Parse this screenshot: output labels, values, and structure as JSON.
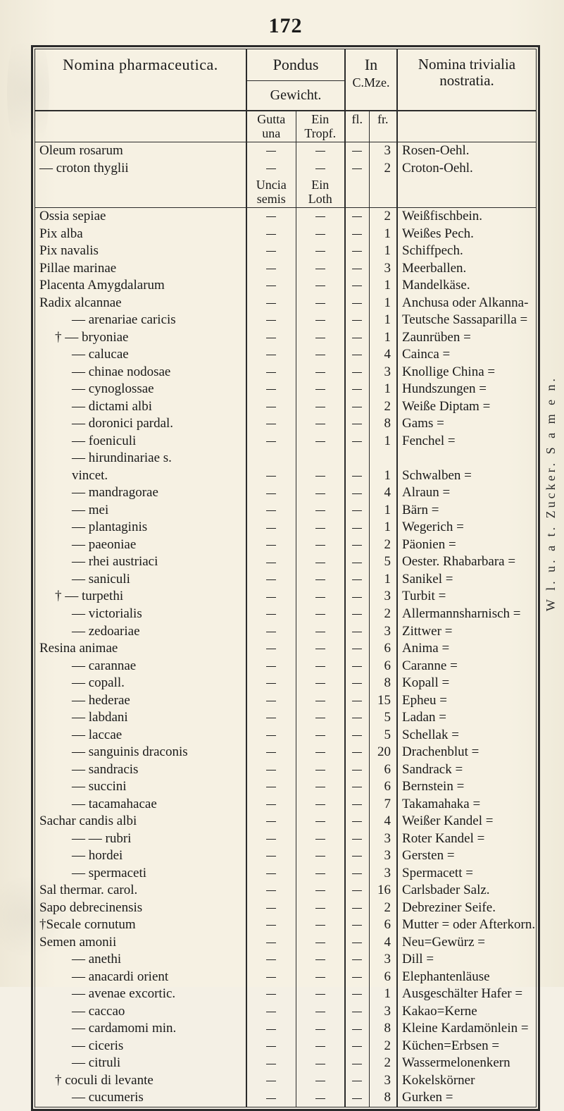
{
  "page_number": "172",
  "columns": {
    "nomina": "Nomina pharmaceutica.",
    "pondus": "Pondus",
    "gewicht": "Gewicht.",
    "in": "In",
    "cmze": "C.Mze.",
    "trivialia": "Nomina trivialia nostratia."
  },
  "group2": {
    "gutta_una": "Gutta\nuna",
    "ein_tropf": "Ein\nTropf.",
    "fl": "fl.",
    "fr": "fr.",
    "uncia_semis": "Uncia\nsemis",
    "ein_loth": "Ein\nLoth"
  },
  "blocks": [
    {
      "rows": [
        {
          "n": "Oleum rosarum",
          "a": "—",
          "b": "—",
          "fl": "—",
          "fr": "3",
          "t": "Rosen-Oehl."
        },
        {
          "n": "— croton thyglii",
          "a": "—",
          "b": "—",
          "fl": "—",
          "fr": "2",
          "t": "Croton-Oehl."
        }
      ]
    },
    {
      "rows": [
        {
          "n": "Ossia sepiae",
          "a": "—",
          "b": "—",
          "fl": "—",
          "fr": "2",
          "t": "Weißfischbein."
        },
        {
          "n": "Pix alba",
          "a": "—",
          "b": "—",
          "fl": "—",
          "fr": "1",
          "t": "Weißes Pech."
        },
        {
          "n": "Pix navalis",
          "a": "—",
          "b": "—",
          "fl": "—",
          "fr": "1",
          "t": "Schiffpech."
        },
        {
          "n": "Pillae marinae",
          "a": "—",
          "b": "—",
          "fl": "—",
          "fr": "3",
          "t": "Meerballen."
        },
        {
          "n": "Placenta Amygdalarum",
          "a": "—",
          "b": "—",
          "fl": "—",
          "fr": "1",
          "t": "Mandelkäse."
        },
        {
          "n": "Radix alcannae",
          "a": "—",
          "b": "—",
          "fl": "—",
          "fr": "1",
          "t": "Anchusa oder Alkanna-"
        },
        {
          "n": "—  arenariae caricis",
          "i": 2,
          "a": "—",
          "b": "—",
          "fl": "—",
          "fr": "1",
          "t": "Teutsche Sassaparilla ="
        },
        {
          "n": "† —  bryoniae",
          "i": 1,
          "a": "—",
          "b": "—",
          "fl": "—",
          "fr": "1",
          "t": "Zaunrüben ="
        },
        {
          "n": "—  calucae",
          "i": 2,
          "a": "—",
          "b": "—",
          "fl": "—",
          "fr": "4",
          "t": "Cainca ="
        },
        {
          "n": "—  chinae nodosae",
          "i": 2,
          "a": "—",
          "b": "—",
          "fl": "—",
          "fr": "3",
          "t": "Knollige China ="
        },
        {
          "n": "—  cynoglossae",
          "i": 2,
          "a": "—",
          "b": "—",
          "fl": "—",
          "fr": "1",
          "t": "Hundszungen ="
        },
        {
          "n": "—  dictami albi",
          "i": 2,
          "a": "—",
          "b": "—",
          "fl": "—",
          "fr": "2",
          "t": "Weiße Diptam ="
        },
        {
          "n": "—  doronici pardal.",
          "i": 2,
          "a": "—",
          "b": "—",
          "fl": "—",
          "fr": "8",
          "t": "Gams ="
        },
        {
          "n": "—  foeniculi",
          "i": 2,
          "a": "—",
          "b": "—",
          "fl": "—",
          "fr": "1",
          "t": "Fenchel ="
        },
        {
          "n": "—  hirundinariae  s.",
          "i": 2,
          "a": "",
          "b": "",
          "fl": "",
          "fr": "",
          "t": ""
        },
        {
          "n": "        vincet.",
          "i": 2,
          "a": "—",
          "b": "—",
          "fl": "—",
          "fr": "1",
          "t": "Schwalben ="
        },
        {
          "n": "—  mandragorae",
          "i": 2,
          "a": "—",
          "b": "—",
          "fl": "—",
          "fr": "4",
          "t": "Alraun ="
        },
        {
          "n": "—  mei",
          "i": 2,
          "a": "—",
          "b": "—",
          "fl": "—",
          "fr": "1",
          "t": "Bärn ="
        },
        {
          "n": "—  plantaginis",
          "i": 2,
          "a": "—",
          "b": "—",
          "fl": "—",
          "fr": "1",
          "t": "Wegerich ="
        },
        {
          "n": "—  paeoniae",
          "i": 2,
          "a": "—",
          "b": "—",
          "fl": "—",
          "fr": "2",
          "t": "Päonien ="
        },
        {
          "n": "—  rhei austriaci",
          "i": 2,
          "a": "—",
          "b": "—",
          "fl": "—",
          "fr": "5",
          "t": "Oester. Rhabarbara ="
        },
        {
          "n": "—  saniculi",
          "i": 2,
          "a": "—",
          "b": "—",
          "fl": "—",
          "fr": "1",
          "t": "Sanikel ="
        },
        {
          "n": "† —  turpethi",
          "i": 1,
          "a": "—",
          "b": "—",
          "fl": "—",
          "fr": "3",
          "t": "Turbit ="
        },
        {
          "n": "—  victorialis",
          "i": 2,
          "a": "—",
          "b": "—",
          "fl": "—",
          "fr": "2",
          "t": "Allermannsharnisch ="
        },
        {
          "n": "—  zedoariae",
          "i": 2,
          "a": "—",
          "b": "—",
          "fl": "—",
          "fr": "3",
          "t": "Zittwer ="
        },
        {
          "n": "Resina animae",
          "a": "—",
          "b": "—",
          "fl": "—",
          "fr": "6",
          "t": "Anima ="
        },
        {
          "n": "—  carannae",
          "i": 2,
          "a": "—",
          "b": "—",
          "fl": "—",
          "fr": "6",
          "t": "Caranne ="
        },
        {
          "n": "—  copall.",
          "i": 2,
          "a": "—",
          "b": "—",
          "fl": "—",
          "fr": "8",
          "t": "Kopall ="
        },
        {
          "n": "—  hederae",
          "i": 2,
          "a": "—",
          "b": "—",
          "fl": "—",
          "fr": "15",
          "t": "Epheu ="
        },
        {
          "n": "—  labdani",
          "i": 2,
          "a": "—",
          "b": "—",
          "fl": "—",
          "fr": "5",
          "t": "Ladan ="
        },
        {
          "n": "—  laccae",
          "i": 2,
          "a": "—",
          "b": "—",
          "fl": "—",
          "fr": "5",
          "t": "Schellak ="
        },
        {
          "n": "—  sanguinis draconis",
          "i": 2,
          "a": "—",
          "b": "—",
          "fl": "—",
          "fr": "20",
          "t": "Drachenblut ="
        },
        {
          "n": "—  sandracis",
          "i": 2,
          "a": "—",
          "b": "—",
          "fl": "—",
          "fr": "6",
          "t": "Sandrack ="
        },
        {
          "n": "—  succini",
          "i": 2,
          "a": "—",
          "b": "—",
          "fl": "—",
          "fr": "6",
          "t": "Bernstein ="
        },
        {
          "n": "—  tacamahacae",
          "i": 2,
          "a": "—",
          "b": "—",
          "fl": "—",
          "fr": "7",
          "t": "Takamahaka ="
        },
        {
          "n": "Sachar candis albi",
          "a": "—",
          "b": "—",
          "fl": "—",
          "fr": "4",
          "t": "Weißer Kandel ="
        },
        {
          "n": "—   —   rubri",
          "i": 2,
          "a": "—",
          "b": "—",
          "fl": "—",
          "fr": "3",
          "t": "Roter Kandel ="
        },
        {
          "n": "—  hordei",
          "i": 2,
          "a": "—",
          "b": "—",
          "fl": "—",
          "fr": "3",
          "t": "Gersten ="
        },
        {
          "n": "—  spermaceti",
          "i": 2,
          "a": "—",
          "b": "—",
          "fl": "—",
          "fr": "3",
          "t": "Spermacett ="
        },
        {
          "n": "Sal thermar. carol.",
          "a": "—",
          "b": "—",
          "fl": "—",
          "fr": "16",
          "t": "Carlsbader Salz."
        },
        {
          "n": "Sapo debrecinensis",
          "a": "—",
          "b": "—",
          "fl": "—",
          "fr": "2",
          "t": "Debreziner Seife."
        },
        {
          "n": "†Secale cornutum",
          "a": "—",
          "b": "—",
          "fl": "—",
          "fr": "6",
          "t": "Mutter = oder Afterkorn."
        },
        {
          "n": "Semen amonii",
          "a": "—",
          "b": "—",
          "fl": "—",
          "fr": "4",
          "t": "Neu=Gewürz ="
        },
        {
          "n": "—  anethi",
          "i": 2,
          "a": "—",
          "b": "—",
          "fl": "—",
          "fr": "3",
          "t": "Dill ="
        },
        {
          "n": "—  anacardi orient",
          "i": 2,
          "a": "—",
          "b": "—",
          "fl": "—",
          "fr": "6",
          "t": "Elephantenläuse"
        },
        {
          "n": "—  avenae excortic.",
          "i": 2,
          "a": "—",
          "b": "—",
          "fl": "—",
          "fr": "1",
          "t": "Ausgeschälter Hafer ="
        },
        {
          "n": "—  caccao",
          "i": 2,
          "a": "—",
          "b": "—",
          "fl": "—",
          "fr": "3",
          "t": "Kakao=Kerne"
        },
        {
          "n": "—  cardamomi min.",
          "i": 2,
          "a": "—",
          "b": "—",
          "fl": "—",
          "fr": "8",
          "t": "Kleine Kardamönlein ="
        },
        {
          "n": "—  ciceris",
          "i": 2,
          "a": "—",
          "b": "—",
          "fl": "—",
          "fr": "2",
          "t": "Küchen=Erbsen ="
        },
        {
          "n": "—  citruli",
          "i": 2,
          "a": "—",
          "b": "—",
          "fl": "—",
          "fr": "2",
          "t": "Wassermelonenkern"
        },
        {
          "n": "†   coculi di levante",
          "i": 1,
          "a": "—",
          "b": "—",
          "fl": "—",
          "fr": "3",
          "t": "Kokelskörner"
        },
        {
          "n": "—  cucumeris",
          "i": 2,
          "a": "—",
          "b": "—",
          "fl": "—",
          "fr": "8",
          "t": "Gurken ="
        }
      ]
    }
  ],
  "side_label": "W   l.   u.   a   t.   Zucker.   S   a   m   e   n."
}
